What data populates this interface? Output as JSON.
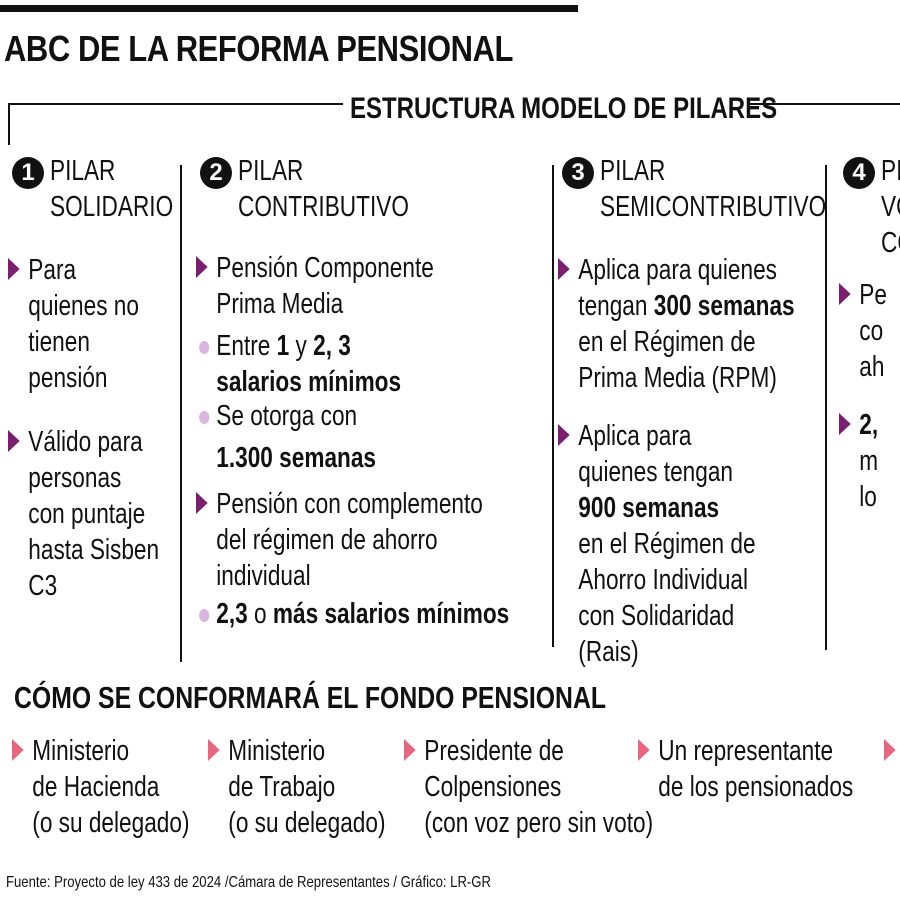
{
  "title": "ABC DE LA REFORMA PENSIONAL",
  "subtitle": "ESTRUCTURA MODELO DE PILARES",
  "colors": {
    "triangle": "#7a1f6f",
    "bullet_dot": "#d9b5df",
    "fund_arrow": "#e8677f",
    "text": "#111111"
  },
  "pillars": [
    {
      "number": "1",
      "head": [
        "PILAR",
        "SOLIDARIO"
      ],
      "items": [
        {
          "type": "triangle",
          "lines": [
            [
              {
                "t": "Para"
              }
            ],
            [
              {
                "t": "quienes no"
              }
            ],
            [
              {
                "t": "tienen"
              }
            ],
            [
              {
                "t": "pensión"
              }
            ]
          ]
        },
        {
          "type": "triangle",
          "lines": [
            [
              {
                "t": "Válido para"
              }
            ],
            [
              {
                "t": "personas"
              }
            ],
            [
              {
                "t": "con puntaje"
              }
            ],
            [
              {
                "t": "hasta Sisben"
              }
            ],
            [
              {
                "t": "C3"
              }
            ]
          ]
        }
      ]
    },
    {
      "number": "2",
      "head": [
        "PILAR",
        "CONTRIBUTIVO"
      ],
      "items": [
        {
          "type": "triangle",
          "lines": [
            [
              {
                "t": "Pensión Componente"
              }
            ],
            [
              {
                "t": "Prima Media"
              }
            ]
          ]
        },
        {
          "type": "dot",
          "lines": [
            [
              {
                "t": "Entre "
              },
              {
                "t": "1",
                "b": true
              },
              {
                "t": " y "
              },
              {
                "t": "2, 3",
                "b": true
              }
            ],
            [
              {
                "t": "salarios mínimos",
                "b": true
              }
            ]
          ]
        },
        {
          "type": "dot",
          "lines": [
            [
              {
                "t": "Se otorga con"
              }
            ],
            [
              {
                "t": "1.300 semanas",
                "b": true
              }
            ]
          ]
        },
        {
          "type": "triangle",
          "lines": [
            [
              {
                "t": "Pensión con complemento"
              }
            ],
            [
              {
                "t": "del régimen de ahorro"
              }
            ],
            [
              {
                "t": "individual"
              }
            ]
          ]
        },
        {
          "type": "dot",
          "lines": [
            [
              {
                "t": "2,3",
                "b": true
              },
              {
                "t": " o "
              },
              {
                "t": "más salarios mínimos",
                "b": true
              }
            ]
          ]
        }
      ]
    },
    {
      "number": "3",
      "head": [
        "PILAR",
        "SEMICONTRIBUTIVO"
      ],
      "items": [
        {
          "type": "triangle",
          "lines": [
            [
              {
                "t": "Aplica para quienes"
              }
            ],
            [
              {
                "t": "tengan "
              },
              {
                "t": "300 semanas",
                "b": true
              }
            ],
            [
              {
                "t": "en el Régimen de"
              }
            ],
            [
              {
                "t": "Prima Media (RPM)"
              }
            ]
          ]
        },
        {
          "type": "triangle",
          "lines": [
            [
              {
                "t": "Aplica para"
              }
            ],
            [
              {
                "t": "quienes tengan"
              }
            ],
            [
              {
                "t": "900 semanas",
                "b": true
              }
            ],
            [
              {
                "t": "en el Régimen de"
              }
            ],
            [
              {
                "t": "Ahorro Individual"
              }
            ],
            [
              {
                "t": "con Solidaridad"
              }
            ],
            [
              {
                "t": "(Rais)"
              }
            ]
          ]
        }
      ]
    },
    {
      "number": "4",
      "head": [
        "PI",
        "VO",
        "CO"
      ],
      "items": [
        {
          "type": "triangle",
          "lines": [
            [
              {
                "t": "Pe"
              }
            ],
            [
              {
                "t": "co"
              }
            ],
            [
              {
                "t": "ah"
              }
            ]
          ]
        },
        {
          "type": "triangle",
          "lines": [
            [
              {
                "t": "2,",
                "b": true
              }
            ],
            [
              {
                "t": "m"
              }
            ],
            [
              {
                "t": "lo"
              }
            ]
          ]
        }
      ]
    }
  ],
  "fund": {
    "heading": "CÓMO SE CONFORMARÁ EL FONDO PENSIONAL",
    "members": [
      [
        "Ministerio",
        "de Hacienda",
        "(o su delegado)"
      ],
      [
        "Ministerio",
        "de Trabajo",
        "(o su delegado)"
      ],
      [
        "Presidente de",
        "Colpensiones",
        "(con voz pero sin voto)"
      ],
      [
        "Un representante",
        "de los pensionados"
      ],
      []
    ]
  },
  "source": "Fuente: Proyecto de ley 433 de 2024 /Cámara de Representantes / Gráfico: LR-GR"
}
